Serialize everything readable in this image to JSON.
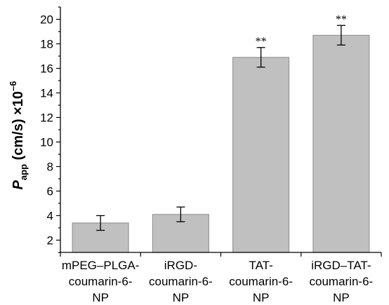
{
  "chart_data": {
    "type": "bar",
    "categories": [
      [
        "mPEG–PLGA-",
        "coumarin-6-",
        "NP"
      ],
      [
        "iRGD-",
        "coumarin-6-",
        "NP"
      ],
      [
        "TAT-",
        "coumarin-6-",
        "NP"
      ],
      [
        "iRGD–TAT-",
        "coumarin-6-",
        "NP"
      ]
    ],
    "values": [
      3.4,
      4.1,
      16.9,
      18.7
    ],
    "errors": [
      0.6,
      0.6,
      0.8,
      0.8
    ],
    "significance": [
      "",
      "",
      "**",
      "**"
    ],
    "ylabel": {
      "symbol": "P",
      "subscript": "app",
      "rest": " (cm/s) ×10",
      "superscript": "–6"
    },
    "ylim": [
      1,
      21
    ],
    "yticks": [
      2,
      4,
      6,
      8,
      10,
      12,
      14,
      16,
      18,
      20
    ],
    "bar_color": "#c0c0c0",
    "bar_edge_color": "#8a8a8a",
    "grid": false
  }
}
